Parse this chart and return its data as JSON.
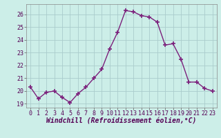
{
  "x": [
    0,
    1,
    2,
    3,
    4,
    5,
    6,
    7,
    8,
    9,
    10,
    11,
    12,
    13,
    14,
    15,
    16,
    17,
    18,
    19,
    20,
    21,
    22,
    23
  ],
  "y": [
    20.3,
    19.4,
    19.9,
    20.0,
    19.5,
    19.1,
    19.8,
    20.3,
    21.0,
    21.7,
    23.3,
    24.6,
    26.3,
    26.2,
    25.9,
    25.8,
    25.4,
    23.6,
    23.7,
    22.5,
    20.7,
    20.7,
    20.2,
    20.0
  ],
  "line_color": "#7B1F7B",
  "marker": "+",
  "marker_size": 4,
  "bg_color": "#cceee8",
  "grid_color": "#aacccc",
  "xlabel": "Windchill (Refroidissement éolien,°C)",
  "xlim": [
    -0.5,
    23.5
  ],
  "ylim": [
    18.7,
    26.8
  ],
  "yticks": [
    19,
    20,
    21,
    22,
    23,
    24,
    25,
    26
  ],
  "xticks": [
    0,
    1,
    2,
    3,
    4,
    5,
    6,
    7,
    8,
    9,
    10,
    11,
    12,
    13,
    14,
    15,
    16,
    17,
    18,
    19,
    20,
    21,
    22,
    23
  ],
  "xlabel_fontsize": 7,
  "tick_fontsize": 6,
  "linewidth": 1.0
}
